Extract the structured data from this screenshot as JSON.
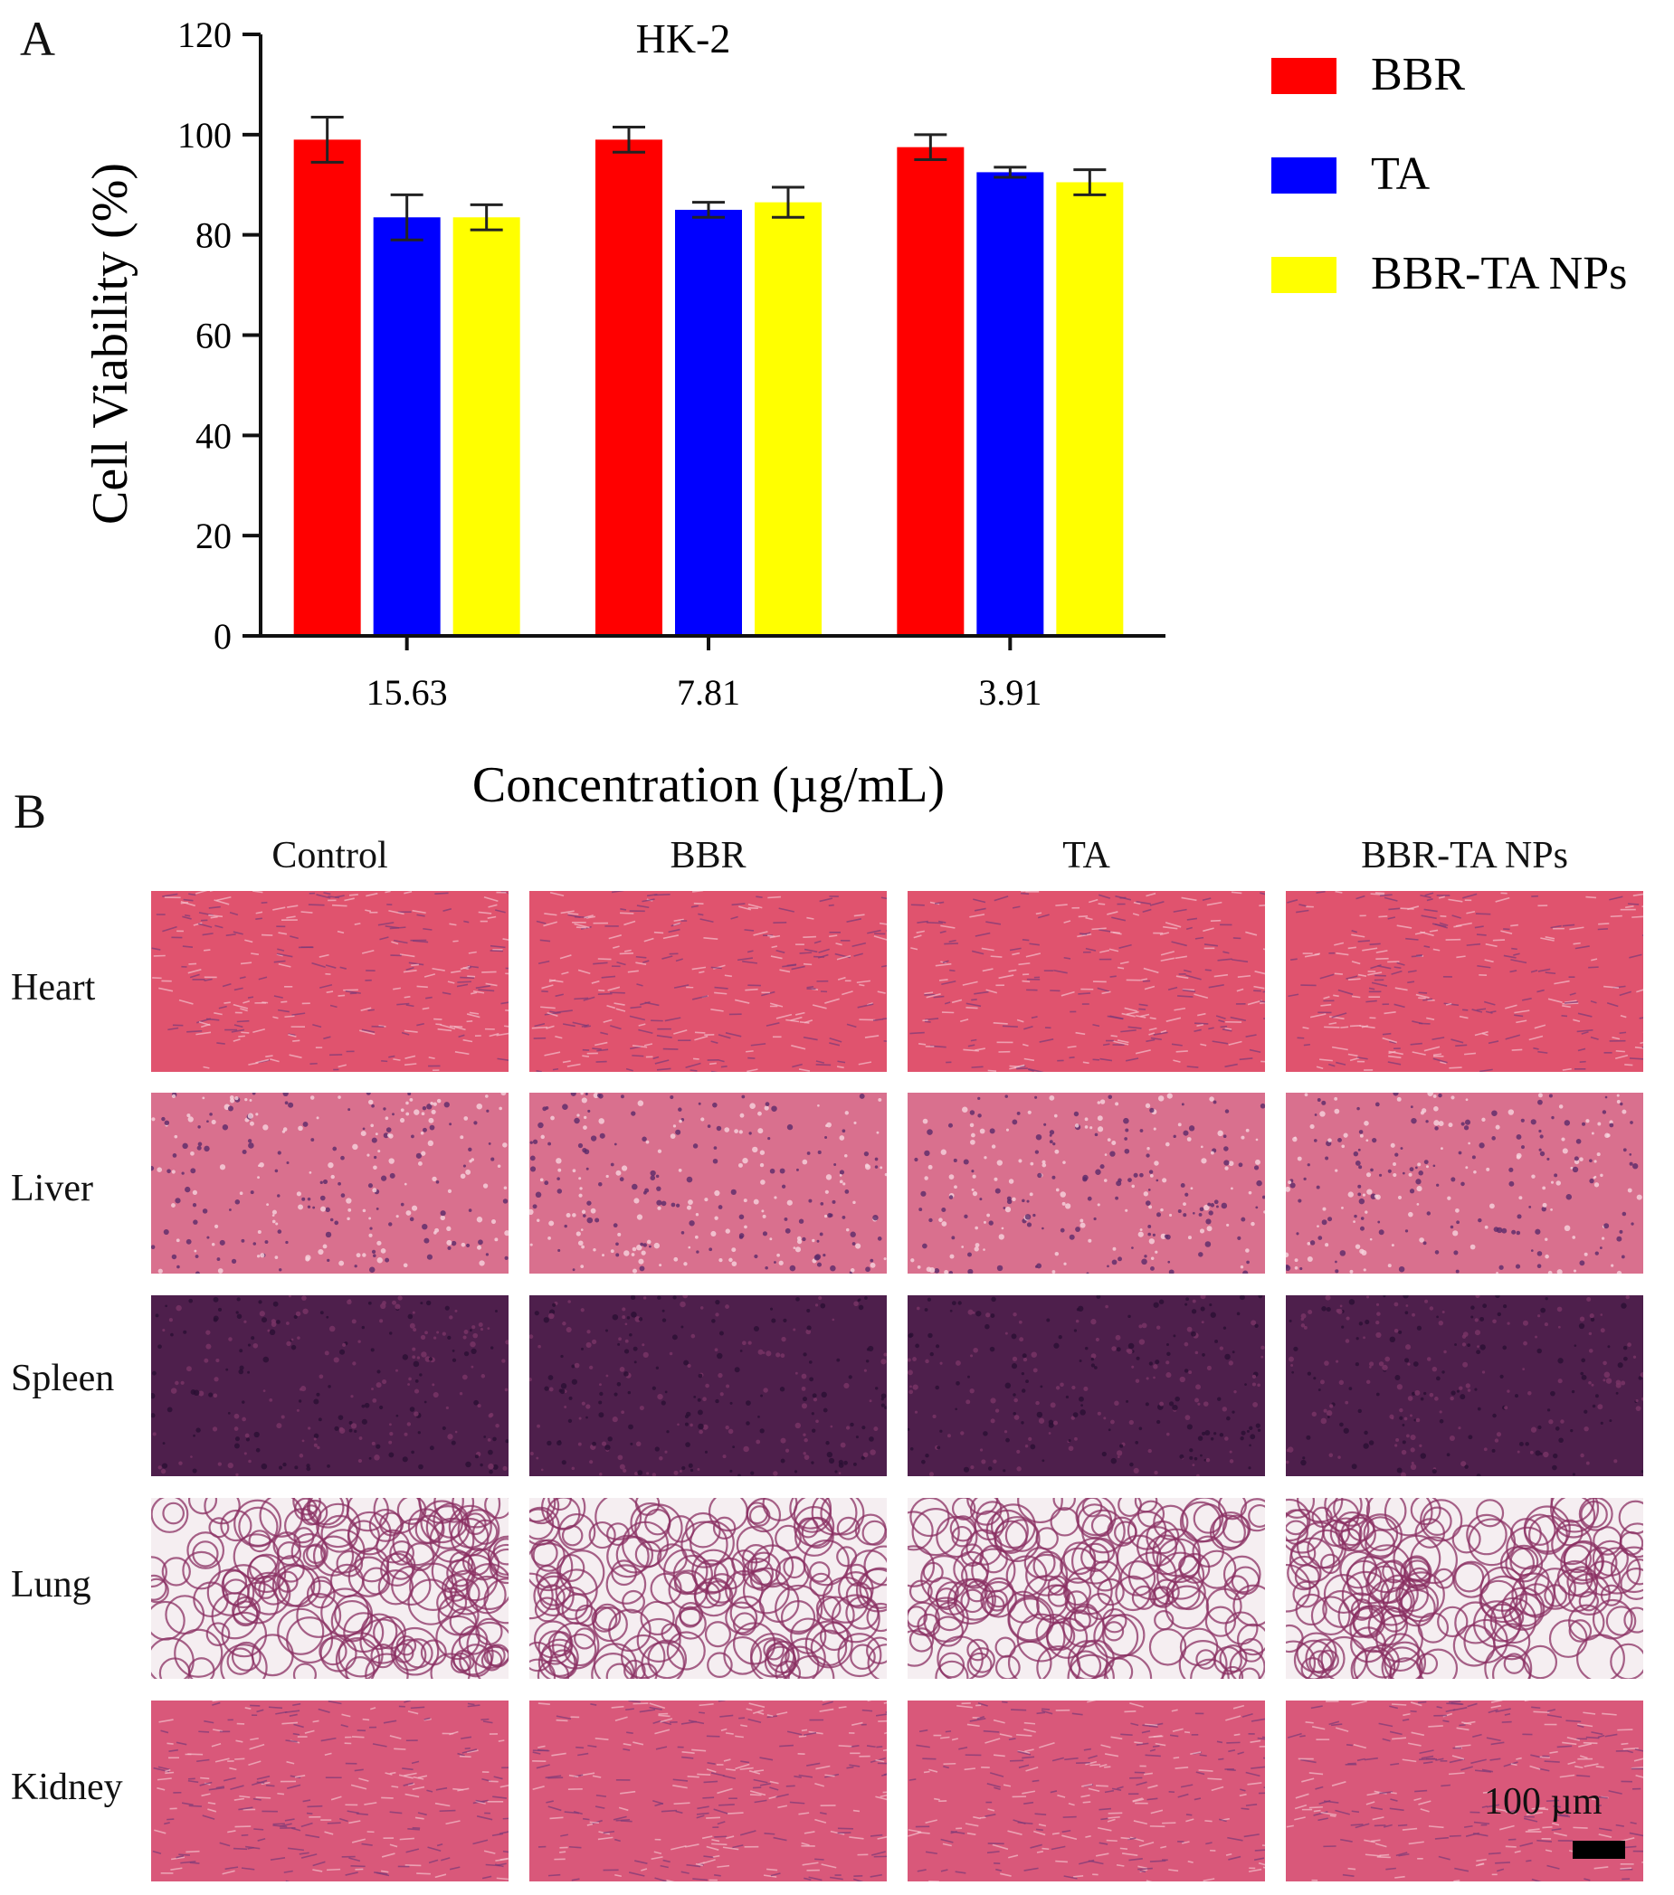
{
  "panel_a": {
    "letter": "A"
  },
  "panel_b": {
    "letter": "B",
    "columns": [
      "Control",
      "BBR",
      "TA",
      "BBR-TA NPs"
    ],
    "rows": [
      "Heart",
      "Liver",
      "Spleen",
      "Lung",
      "Kidney"
    ],
    "scale_bar_label": "100 µm",
    "stain_colors": {
      "Heart": "#e0536e",
      "Liver": "#d9708e",
      "Spleen": "#4e1f4c",
      "Lung": "#f5eef1",
      "Kidney": "#d9587a"
    }
  },
  "chart_data": {
    "type": "bar",
    "title": "HK-2",
    "xlabel": "Concentration (µg/mL)",
    "ylabel": "Cell Viability (%)",
    "ylim": [
      0,
      120
    ],
    "yticks": [
      "0",
      "20",
      "40",
      "60",
      "80",
      "100",
      "120"
    ],
    "categories": [
      "15.63",
      "7.81",
      "3.91"
    ],
    "series": [
      {
        "name": "BBR",
        "color": "#ff0000",
        "values": [
          99,
          99,
          97.5
        ],
        "errors": [
          4.5,
          2.5,
          2.5
        ]
      },
      {
        "name": "TA",
        "color": "#0000ff",
        "values": [
          83.5,
          85,
          92.5
        ],
        "errors": [
          4.5,
          1.5,
          1
        ]
      },
      {
        "name": "BBR-TA NPs",
        "color": "#ffff00",
        "values": [
          83.5,
          86.5,
          90.5
        ],
        "errors": [
          2.5,
          3,
          2.5
        ]
      }
    ],
    "legend_position": "right"
  }
}
